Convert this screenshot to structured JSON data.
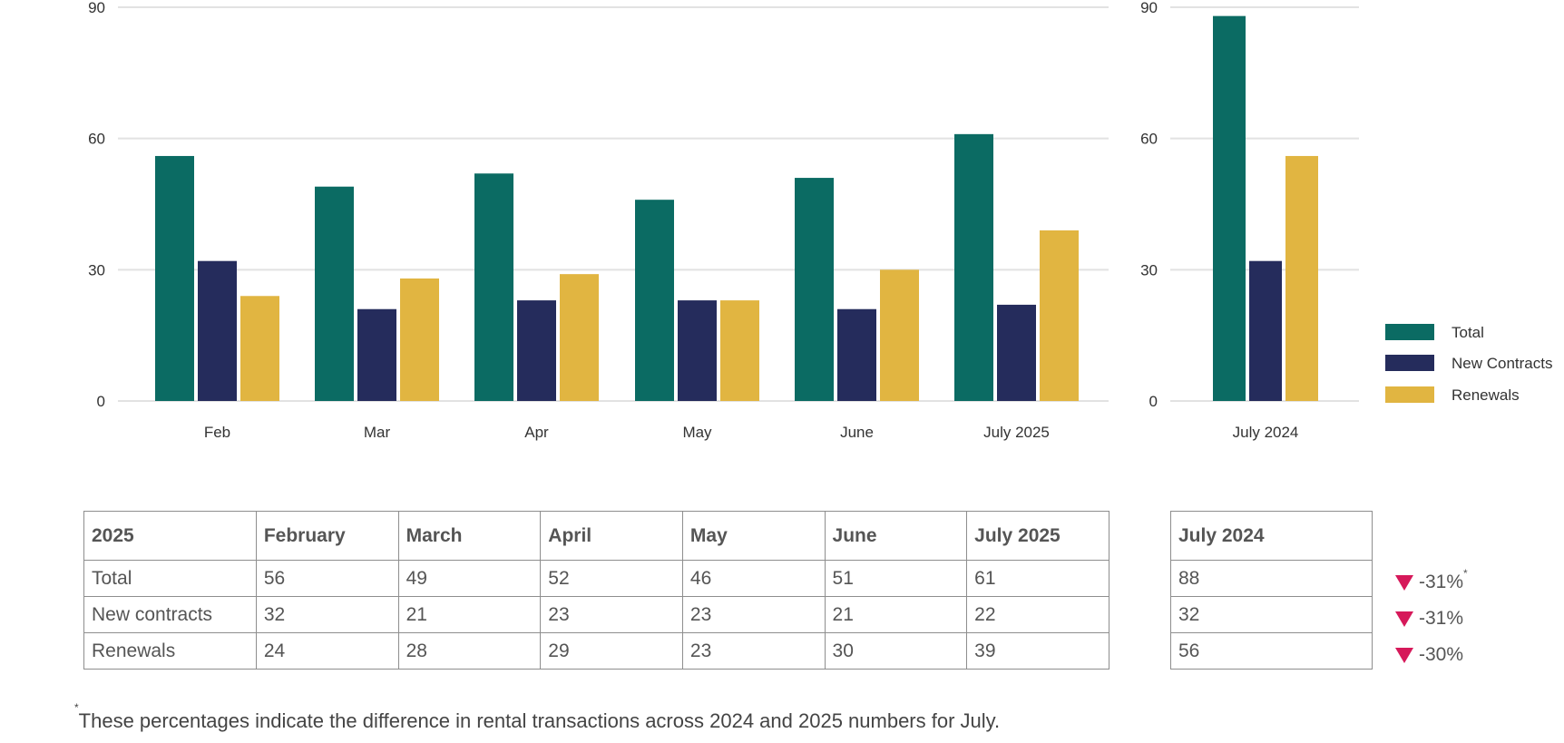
{
  "chart_data": [
    {
      "type": "bar",
      "categories": [
        "Feb",
        "Mar",
        "Apr",
        "May",
        "June",
        "July 2025"
      ],
      "series": [
        {
          "name": "Total",
          "color": "#0b6b63",
          "values": [
            56,
            49,
            52,
            46,
            51,
            61
          ]
        },
        {
          "name": "New Contracts",
          "color": "#252c5c",
          "values": [
            32,
            21,
            23,
            23,
            21,
            22
          ]
        },
        {
          "name": "Renewals",
          "color": "#e1b541",
          "values": [
            24,
            28,
            29,
            23,
            30,
            39
          ]
        }
      ],
      "yticks": [
        "0",
        "30",
        "60",
        "90"
      ],
      "ylim": [
        0,
        90
      ],
      "grid": true
    },
    {
      "type": "bar",
      "categories": [
        "July 2024"
      ],
      "series": [
        {
          "name": "Total",
          "color": "#0b6b63",
          "values": [
            88
          ]
        },
        {
          "name": "New Contracts",
          "color": "#252c5c",
          "values": [
            32
          ]
        },
        {
          "name": "Renewals",
          "color": "#e1b541",
          "values": [
            56
          ]
        }
      ],
      "yticks": [
        "0",
        "30",
        "60",
        "90"
      ],
      "ylim": [
        0,
        90
      ],
      "grid": true,
      "legend_position": "right"
    }
  ],
  "legend": [
    {
      "label": "Total",
      "color": "#0b6b63"
    },
    {
      "label": "New Contracts",
      "color": "#252c5c"
    },
    {
      "label": "Renewals",
      "color": "#e1b541"
    }
  ],
  "table_2025": {
    "header": [
      "2025",
      "February",
      "March",
      "April",
      "May",
      "June",
      "July 2025"
    ],
    "rows": [
      [
        "Total",
        "56",
        "49",
        "52",
        "46",
        "51",
        "61"
      ],
      [
        "New contracts",
        "32",
        "21",
        "23",
        "23",
        "21",
        "22"
      ],
      [
        "Renewals",
        "24",
        "28",
        "29",
        "23",
        "30",
        "39"
      ]
    ]
  },
  "table_2024": {
    "header": "July 2024",
    "rows": [
      "88",
      "32",
      "56"
    ]
  },
  "changes": [
    {
      "value": "-31%",
      "marker": "*"
    },
    {
      "value": "-31%",
      "marker": ""
    },
    {
      "value": "-30%",
      "marker": ""
    }
  ],
  "change_color": "#d6195a",
  "footnote": {
    "marker": "*",
    "text": "These percentages indicate the difference in rental transactions across 2024 and 2025 numbers for July."
  }
}
